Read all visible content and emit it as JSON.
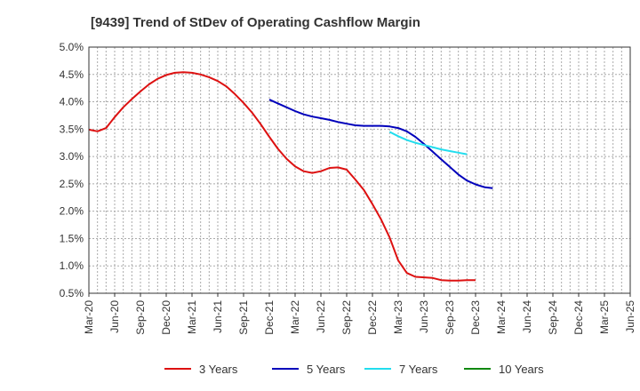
{
  "chart_data": {
    "type": "line",
    "title": "[9439]  Trend of StDev of Operating Cashflow Margin",
    "xlabel": "",
    "ylabel": "",
    "ylim": [
      0.5,
      5.0
    ],
    "y_ticks": [
      "0.5%",
      "1.0%",
      "1.5%",
      "2.0%",
      "2.5%",
      "3.0%",
      "3.5%",
      "4.0%",
      "4.5%",
      "5.0%"
    ],
    "y_tick_values": [
      0.5,
      1.0,
      1.5,
      2.0,
      2.5,
      3.0,
      3.5,
      4.0,
      4.5,
      5.0
    ],
    "x_ticks": [
      "Mar-20",
      "Jun-20",
      "Sep-20",
      "Dec-20",
      "Mar-21",
      "Jun-21",
      "Sep-21",
      "Dec-21",
      "Mar-22",
      "Jun-22",
      "Sep-22",
      "Dec-22",
      "Mar-23",
      "Jun-23",
      "Sep-23",
      "Dec-23",
      "Mar-24",
      "Jun-24",
      "Sep-24",
      "Dec-24",
      "Mar-25",
      "Jun-25"
    ],
    "grid": true,
    "legend_position": "bottom",
    "series": [
      {
        "name": "3 Years",
        "color": "#dd1111",
        "start_index": 0,
        "values": [
          3.49,
          3.46,
          3.52,
          3.72,
          3.9,
          4.05,
          4.19,
          4.32,
          4.42,
          4.49,
          4.53,
          4.54,
          4.53,
          4.5,
          4.45,
          4.38,
          4.28,
          4.14,
          3.98,
          3.8,
          3.59,
          3.36,
          3.14,
          2.96,
          2.82,
          2.73,
          2.7,
          2.73,
          2.79,
          2.8,
          2.76,
          2.58,
          2.39,
          2.13,
          1.85,
          1.52,
          1.1,
          0.87,
          0.8,
          0.79,
          0.78,
          0.74,
          0.73,
          0.73,
          0.74,
          0.74
        ]
      },
      {
        "name": "5 Years",
        "color": "#0000bb",
        "start_index": 21,
        "values": [
          4.04,
          3.97,
          3.9,
          3.83,
          3.77,
          3.73,
          3.7,
          3.67,
          3.63,
          3.6,
          3.57,
          3.56,
          3.56,
          3.56,
          3.55,
          3.52,
          3.46,
          3.36,
          3.23,
          3.09,
          2.95,
          2.81,
          2.67,
          2.56,
          2.49,
          2.44,
          2.42
        ]
      },
      {
        "name": "7 Years",
        "color": "#22ddee",
        "start_index": 35,
        "values": [
          3.45,
          3.37,
          3.3,
          3.25,
          3.21,
          3.17,
          3.13,
          3.1,
          3.07,
          3.04
        ]
      },
      {
        "name": "10 Years",
        "color": "#118811",
        "start_index": 0,
        "values": []
      }
    ]
  }
}
